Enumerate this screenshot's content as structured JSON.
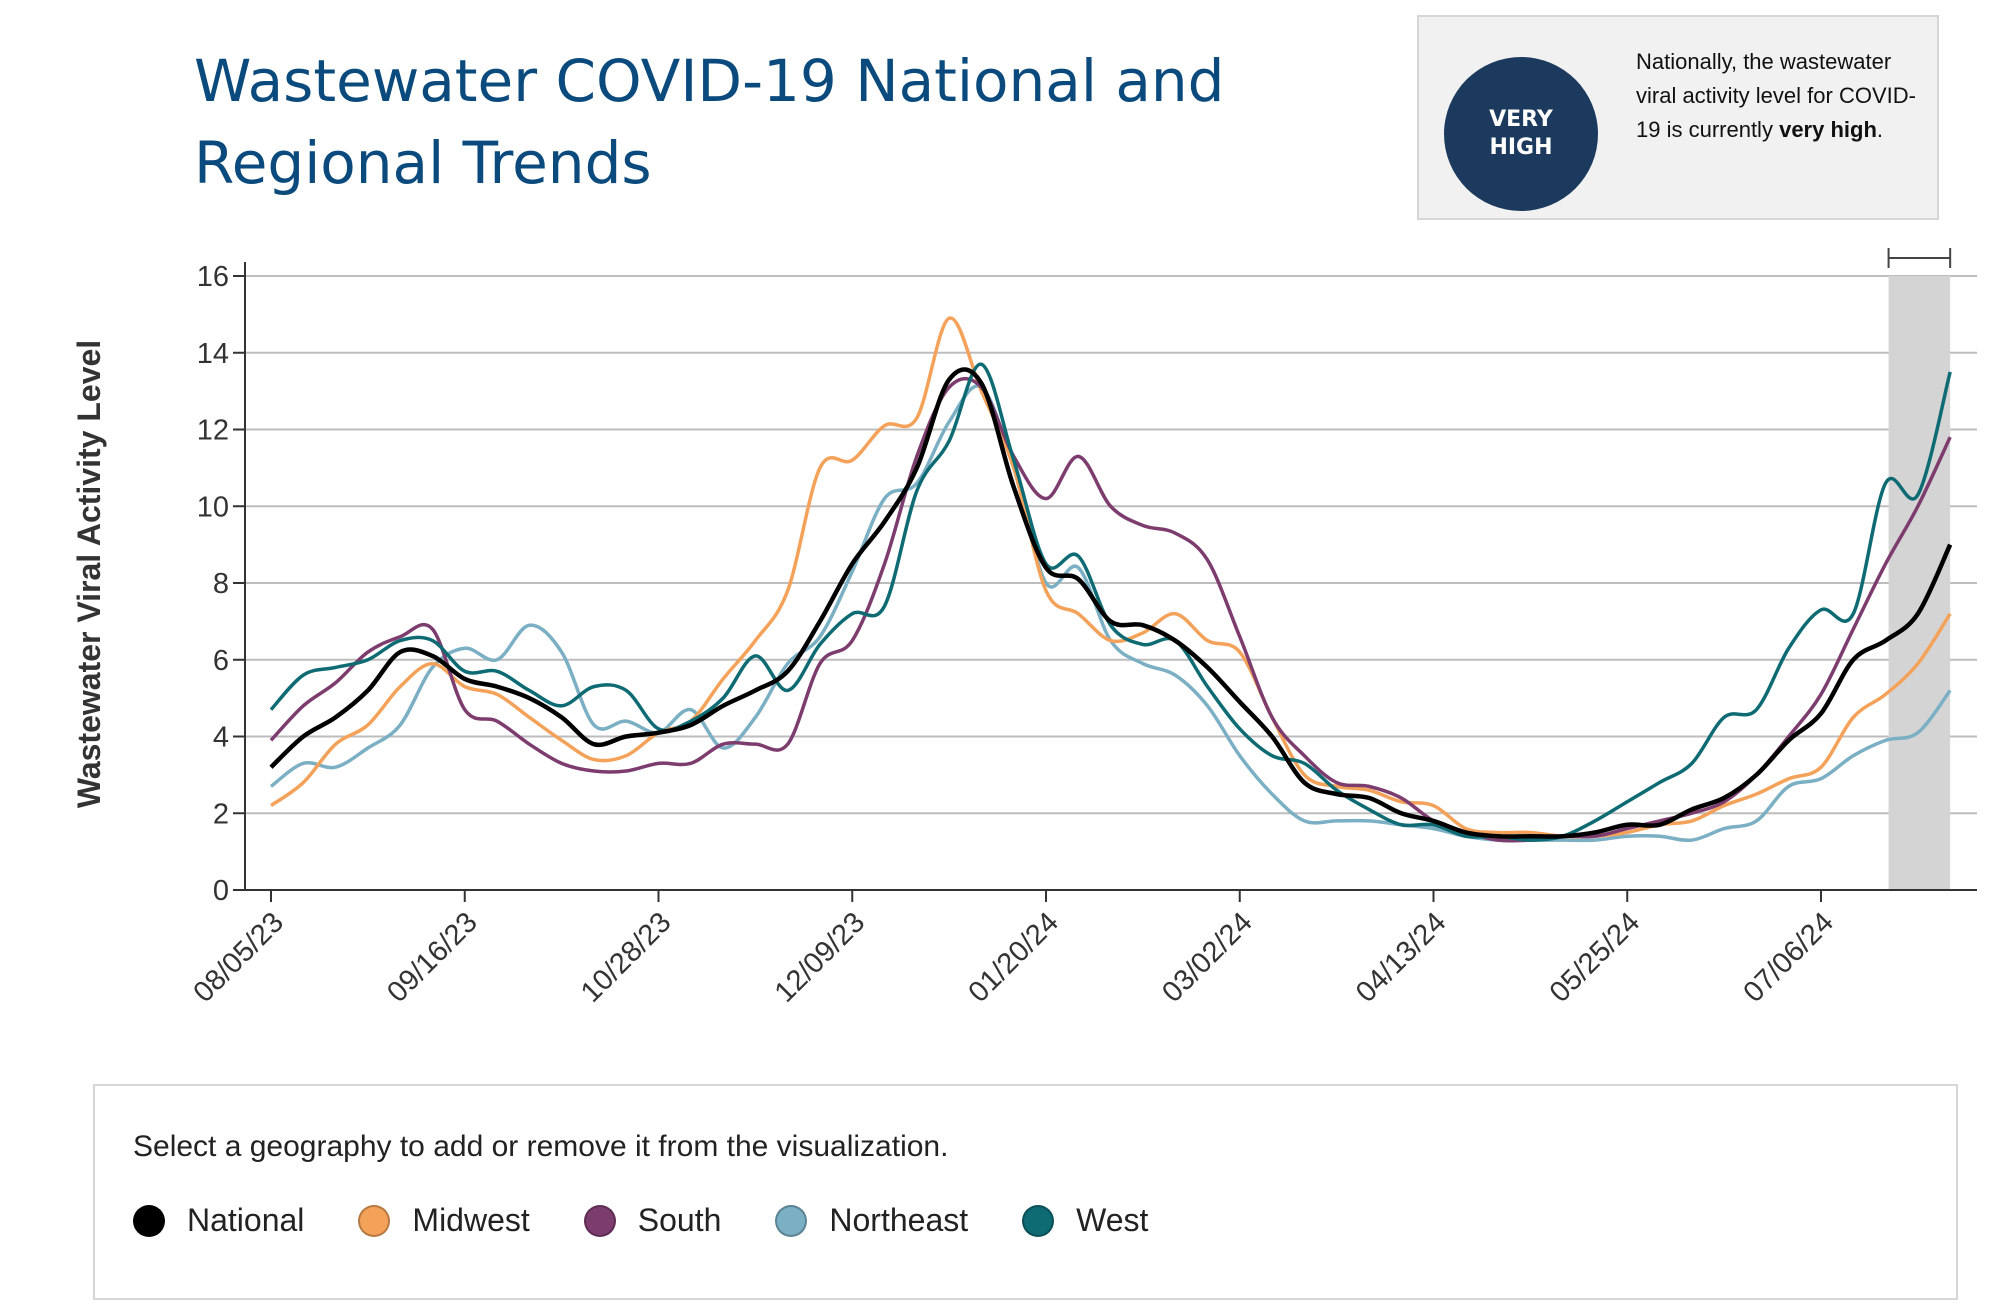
{
  "title": "Wastewater COVID-19 National and Regional Trends",
  "status": {
    "badge_line1": "VERY",
    "badge_line2": "HIGH",
    "text_prefix": "Nationally, the wastewater viral activity level for COVID-19 is currently",
    "text_bold": "very high",
    "text_suffix": ".",
    "badge_color": "#1c3a5e"
  },
  "legend": {
    "prompt": "Select a geography to add or remove it from the visualization."
  },
  "chart_data": {
    "type": "line",
    "title": "",
    "xlabel": "",
    "ylabel": "Wastewater Viral Activity Level",
    "ylim": [
      0,
      16
    ],
    "yticks": [
      "0",
      "2",
      "4",
      "6",
      "8",
      "10",
      "12",
      "14",
      "16"
    ],
    "xticks": [
      "08/05/23",
      "09/16/23",
      "10/28/23",
      "12/09/23",
      "01/20/24",
      "03/02/24",
      "04/13/24",
      "05/25/24",
      "07/06/24"
    ],
    "grid": true,
    "legend_position": "bottom",
    "shaded_region": [
      "07/20/24",
      "08/03/24"
    ],
    "x": [
      "08/05/23",
      "08/12/23",
      "08/19/23",
      "08/26/23",
      "09/02/23",
      "09/09/23",
      "09/16/23",
      "09/23/23",
      "09/30/23",
      "10/07/23",
      "10/14/23",
      "10/21/23",
      "10/28/23",
      "11/04/23",
      "11/11/23",
      "11/18/23",
      "11/25/23",
      "12/02/23",
      "12/09/23",
      "12/16/23",
      "12/23/23",
      "12/30/23",
      "01/06/24",
      "01/13/24",
      "01/20/24",
      "01/27/24",
      "02/03/24",
      "02/10/24",
      "02/17/24",
      "02/24/24",
      "03/02/24",
      "03/09/24",
      "03/16/24",
      "03/23/24",
      "03/30/24",
      "04/06/24",
      "04/13/24",
      "04/20/24",
      "04/27/24",
      "05/04/24",
      "05/11/24",
      "05/18/24",
      "05/25/24",
      "06/01/24",
      "06/08/24",
      "06/15/24",
      "06/22/24",
      "06/29/24",
      "07/06/24",
      "07/13/24",
      "07/20/24",
      "07/27/24",
      "08/03/24"
    ],
    "series": [
      {
        "name": "National",
        "color": "#000000",
        "values": [
          3.2,
          4.0,
          4.5,
          5.2,
          6.2,
          6.1,
          5.5,
          5.3,
          5.0,
          4.5,
          3.8,
          4.0,
          4.1,
          4.3,
          4.8,
          5.2,
          5.7,
          7.0,
          8.5,
          9.6,
          11.0,
          13.3,
          13.2,
          10.5,
          8.4,
          8.1,
          7.0,
          6.9,
          6.5,
          5.8,
          4.9,
          4.0,
          2.8,
          2.5,
          2.4,
          2.0,
          1.8,
          1.5,
          1.4,
          1.4,
          1.4,
          1.5,
          1.7,
          1.7,
          2.1,
          2.4,
          3.0,
          3.9,
          4.6,
          6.0,
          6.5,
          7.2,
          9.0
        ]
      },
      {
        "name": "Midwest",
        "color": "#f4a259",
        "values": [
          2.2,
          2.8,
          3.8,
          4.3,
          5.3,
          5.9,
          5.3,
          5.1,
          4.5,
          3.9,
          3.4,
          3.5,
          4.1,
          4.4,
          5.5,
          6.5,
          7.8,
          11.0,
          11.2,
          12.1,
          12.3,
          14.9,
          13.0,
          11.0,
          7.8,
          7.2,
          6.5,
          6.7,
          7.2,
          6.5,
          6.2,
          4.5,
          3.0,
          2.7,
          2.6,
          2.3,
          2.2,
          1.6,
          1.5,
          1.5,
          1.4,
          1.4,
          1.5,
          1.7,
          1.8,
          2.2,
          2.5,
          2.9,
          3.2,
          4.5,
          5.1,
          5.9,
          7.2
        ]
      },
      {
        "name": "South",
        "color": "#7d3c6e",
        "values": [
          3.9,
          4.8,
          5.4,
          6.2,
          6.6,
          6.8,
          4.7,
          4.4,
          3.8,
          3.3,
          3.1,
          3.1,
          3.3,
          3.3,
          3.8,
          3.8,
          3.8,
          5.9,
          6.5,
          8.5,
          11.3,
          13.1,
          13.1,
          11.3,
          10.2,
          11.3,
          10.0,
          9.5,
          9.3,
          8.6,
          6.6,
          4.5,
          3.5,
          2.8,
          2.7,
          2.4,
          1.8,
          1.5,
          1.3,
          1.3,
          1.4,
          1.4,
          1.6,
          1.8,
          2.0,
          2.3,
          3.0,
          4.0,
          5.1,
          6.8,
          8.5,
          10.0,
          11.8
        ]
      },
      {
        "name": "Northeast",
        "color": "#7aafc4",
        "values": [
          2.7,
          3.3,
          3.2,
          3.7,
          4.3,
          5.8,
          6.3,
          6.0,
          6.9,
          6.2,
          4.3,
          4.4,
          4.1,
          4.7,
          3.7,
          4.5,
          5.9,
          6.6,
          8.3,
          10.2,
          10.6,
          12.2,
          13.1,
          11.0,
          8.0,
          8.4,
          6.5,
          5.9,
          5.6,
          4.8,
          3.5,
          2.5,
          1.8,
          1.8,
          1.8,
          1.7,
          1.6,
          1.4,
          1.3,
          1.3,
          1.3,
          1.3,
          1.4,
          1.4,
          1.3,
          1.6,
          1.8,
          2.7,
          2.9,
          3.5,
          3.9,
          4.1,
          5.2
        ]
      },
      {
        "name": "West",
        "color": "#0e6b73",
        "values": [
          4.7,
          5.6,
          5.8,
          6.0,
          6.5,
          6.5,
          5.7,
          5.7,
          5.2,
          4.8,
          5.3,
          5.2,
          4.2,
          4.4,
          5.0,
          6.1,
          5.2,
          6.4,
          7.2,
          7.4,
          10.4,
          11.7,
          13.7,
          11.2,
          8.5,
          8.7,
          6.9,
          6.4,
          6.5,
          5.3,
          4.2,
          3.5,
          3.3,
          2.6,
          2.1,
          1.7,
          1.7,
          1.4,
          1.4,
          1.3,
          1.4,
          1.8,
          2.3,
          2.8,
          3.3,
          4.5,
          4.7,
          6.3,
          7.3,
          7.2,
          10.6,
          10.3,
          13.5
        ]
      }
    ]
  }
}
